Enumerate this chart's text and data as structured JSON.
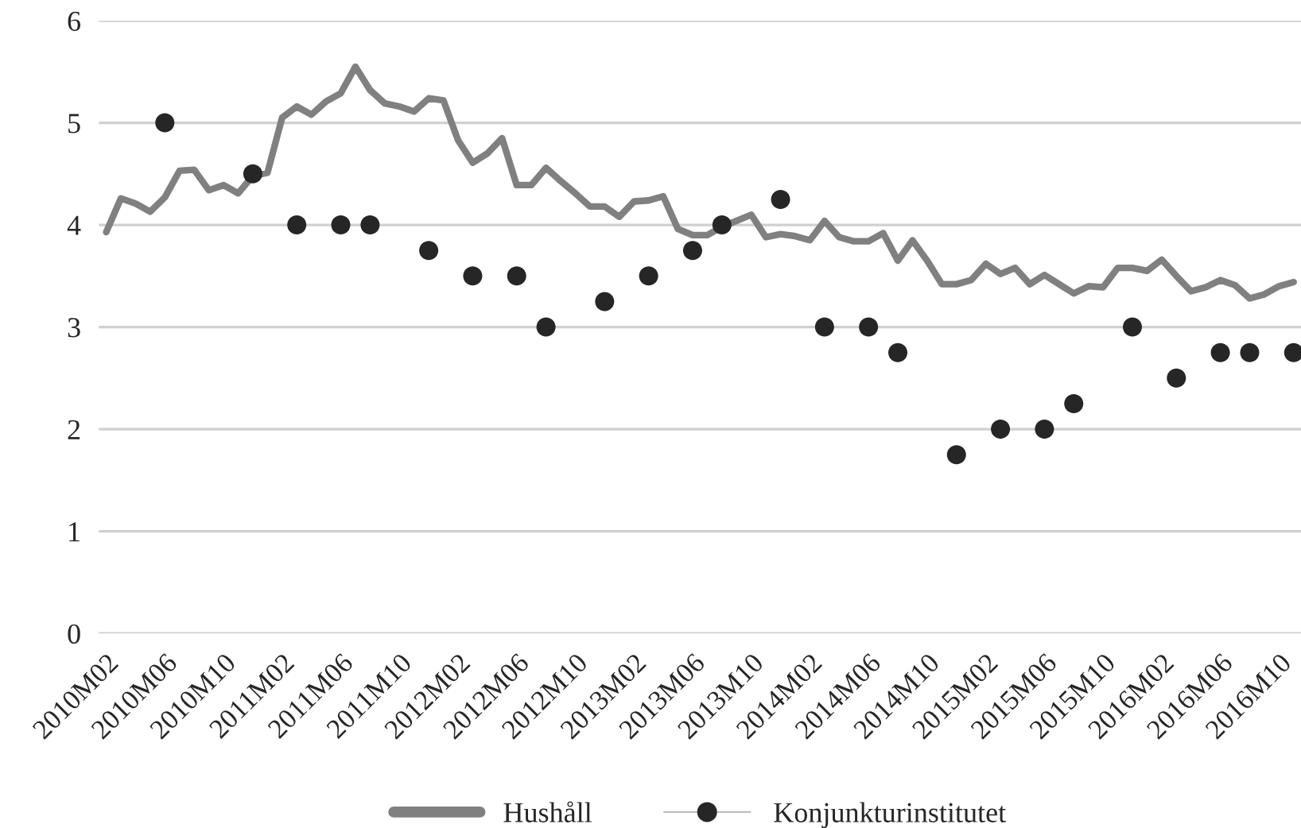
{
  "chart_data": {
    "type": "line",
    "categories": [
      "2010M02",
      null,
      null,
      null,
      "2010M06",
      null,
      null,
      null,
      "2010M10",
      null,
      null,
      null,
      "2011M02",
      null,
      null,
      null,
      "2011M06",
      null,
      null,
      null,
      "2011M10",
      null,
      null,
      null,
      "2012M02",
      null,
      null,
      null,
      "2012M06",
      null,
      null,
      null,
      "2012M10",
      null,
      null,
      null,
      "2013M02",
      null,
      null,
      null,
      "2013M06",
      null,
      null,
      null,
      "2013M10",
      null,
      null,
      null,
      "2014M02",
      null,
      null,
      null,
      "2014M06",
      null,
      null,
      null,
      "2014M10",
      null,
      null,
      null,
      "2015M02",
      null,
      null,
      null,
      "2015M06",
      null,
      null,
      null,
      "2015M10",
      null,
      null,
      null,
      "2016M02",
      null,
      null,
      null,
      "2016M06",
      null,
      null,
      null,
      "2016M10",
      null
    ],
    "series": [
      {
        "name": "Hushåll",
        "color": "#808080",
        "values": [
          3.93,
          4.26,
          4.21,
          4.13,
          4.27,
          4.53,
          4.54,
          4.34,
          4.39,
          4.31,
          4.48,
          4.51,
          5.05,
          5.16,
          5.08,
          5.21,
          5.29,
          5.55,
          5.32,
          5.19,
          5.16,
          5.11,
          5.24,
          5.22,
          4.83,
          4.61,
          4.7,
          4.85,
          4.39,
          4.39,
          4.56,
          4.43,
          4.31,
          4.18,
          4.18,
          4.08,
          4.23,
          4.24,
          4.28,
          3.96,
          3.9,
          3.9,
          3.98,
          4.04,
          4.1,
          3.88,
          3.91,
          3.89,
          3.85,
          4.04,
          3.88,
          3.84,
          3.84,
          3.92,
          3.65,
          3.85,
          3.65,
          3.42,
          3.42,
          3.46,
          3.62,
          3.52,
          3.58,
          3.42,
          3.51,
          3.42,
          3.33,
          3.4,
          3.39,
          3.58,
          3.58,
          3.55,
          3.66,
          3.5,
          3.35,
          3.39,
          3.46,
          3.41,
          3.28,
          3.32,
          3.4,
          3.44
        ]
      },
      {
        "name": "Konjunkturinstitutet",
        "type": "scatter",
        "color": "#262626",
        "marker": "circle",
        "values": [
          null,
          null,
          null,
          null,
          5.0,
          null,
          null,
          null,
          null,
          null,
          4.5,
          null,
          null,
          4.0,
          null,
          null,
          4.0,
          null,
          4.0,
          null,
          null,
          null,
          3.75,
          null,
          null,
          3.5,
          null,
          null,
          3.5,
          null,
          3.0,
          null,
          null,
          null,
          3.25,
          null,
          null,
          3.5,
          null,
          null,
          3.75,
          null,
          4.0,
          null,
          null,
          null,
          4.25,
          null,
          null,
          3.0,
          null,
          null,
          3.0,
          null,
          2.75,
          null,
          null,
          null,
          1.75,
          null,
          null,
          2.0,
          null,
          null,
          2.0,
          null,
          2.25,
          null,
          null,
          null,
          3.0,
          null,
          null,
          2.5,
          null,
          null,
          2.75,
          null,
          2.75,
          null,
          null,
          2.75
        ]
      }
    ],
    "ylim": [
      0,
      6
    ],
    "yticks": [
      0,
      1,
      2,
      3,
      4,
      5,
      6
    ],
    "grid": "y",
    "legend": "bottom"
  }
}
